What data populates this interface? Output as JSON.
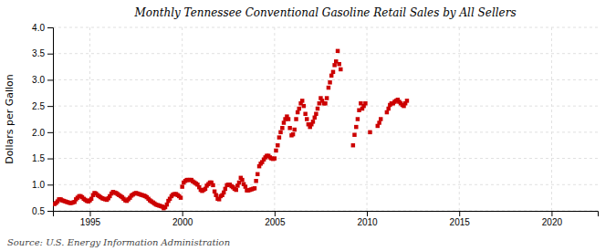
{
  "chart_data": {
    "type": "scatter",
    "title": "Monthly Tennessee Conventional Gasoline Retail Sales by All Sellers",
    "y_label": "Dollars per Gallon",
    "annotations": [
      "Source: U.S. Energy Information Administration"
    ],
    "color": "#cc0000",
    "marker": "square",
    "grid": true,
    "xlim": [
      1993.0,
      2022.5
    ],
    "ylim": [
      0.5,
      4.0
    ],
    "xticks": [
      1995,
      2000,
      2005,
      2010,
      2015,
      2020
    ],
    "yticks": [
      0.5,
      {
        "value": 1.0,
        "label": "1.0"
      },
      1.5,
      {
        "value": 2.0,
        "label": "2.0"
      },
      2.5,
      {
        "value": 3.0,
        "label": "3.0"
      },
      3.5,
      {
        "value": 4.0,
        "label": "4.0"
      }
    ],
    "x": [
      1993.08,
      1993.17,
      1993.25,
      1993.33,
      1993.42,
      1993.5,
      1993.58,
      1993.67,
      1993.75,
      1993.83,
      1993.92,
      1994.0,
      1994.08,
      1994.17,
      1994.25,
      1994.33,
      1994.42,
      1994.5,
      1994.58,
      1994.67,
      1994.75,
      1994.83,
      1994.92,
      1995.0,
      1995.08,
      1995.17,
      1995.25,
      1995.33,
      1995.42,
      1995.5,
      1995.58,
      1995.67,
      1995.75,
      1995.83,
      1995.92,
      1996.0,
      1996.08,
      1996.17,
      1996.25,
      1996.33,
      1996.42,
      1996.5,
      1996.58,
      1996.67,
      1996.75,
      1996.83,
      1996.92,
      1997.0,
      1997.08,
      1997.17,
      1997.25,
      1997.33,
      1997.42,
      1997.5,
      1997.58,
      1997.67,
      1997.75,
      1997.83,
      1997.92,
      1998.0,
      1998.08,
      1998.17,
      1998.25,
      1998.33,
      1998.42,
      1998.5,
      1998.58,
      1998.67,
      1998.75,
      1998.83,
      1998.92,
      1999.0,
      1999.08,
      1999.17,
      1999.25,
      1999.33,
      1999.42,
      1999.5,
      1999.58,
      1999.67,
      1999.75,
      1999.83,
      1999.92,
      2000.0,
      2000.08,
      2000.17,
      2000.25,
      2000.33,
      2000.42,
      2000.5,
      2000.58,
      2000.67,
      2000.75,
      2000.83,
      2000.92,
      2001.0,
      2001.08,
      2001.17,
      2001.25,
      2001.33,
      2001.42,
      2001.5,
      2001.58,
      2001.67,
      2001.75,
      2001.83,
      2001.92,
      2002.0,
      2002.08,
      2002.17,
      2002.25,
      2002.33,
      2002.42,
      2002.5,
      2002.58,
      2002.67,
      2002.75,
      2002.83,
      2002.92,
      2003.0,
      2003.08,
      2003.17,
      2003.25,
      2003.33,
      2003.42,
      2003.5,
      2003.58,
      2003.67,
      2003.75,
      2003.83,
      2003.92,
      2004.0,
      2004.08,
      2004.17,
      2004.25,
      2004.33,
      2004.42,
      2004.5,
      2004.58,
      2004.67,
      2004.75,
      2004.83,
      2004.92,
      2005.0,
      2005.08,
      2005.17,
      2005.25,
      2005.33,
      2005.42,
      2005.5,
      2005.58,
      2005.67,
      2005.75,
      2005.83,
      2005.92,
      2006.0,
      2006.08,
      2006.17,
      2006.25,
      2006.33,
      2006.42,
      2006.5,
      2006.58,
      2006.67,
      2006.75,
      2006.83,
      2006.92,
      2007.0,
      2007.08,
      2007.17,
      2007.25,
      2007.33,
      2007.42,
      2007.5,
      2007.58,
      2007.67,
      2007.75,
      2007.83,
      2007.92,
      2008.0,
      2008.08,
      2008.17,
      2008.25,
      2008.33,
      2008.42,
      2008.5,
      2008.58,
      2009.25,
      2009.33,
      2009.42,
      2009.5,
      2009.58,
      2009.67,
      2009.75,
      2009.83,
      2009.92,
      2010.17,
      2010.58,
      2010.67,
      2010.75,
      2011.08,
      2011.17,
      2011.25,
      2011.33,
      2011.42,
      2011.5,
      2011.58,
      2011.67,
      2011.75,
      2011.83,
      2011.92,
      2012.0,
      2012.08,
      2012.17
    ],
    "values": [
      0.63,
      0.65,
      0.68,
      0.72,
      0.72,
      0.7,
      0.69,
      0.68,
      0.67,
      0.66,
      0.65,
      0.65,
      0.66,
      0.67,
      0.72,
      0.75,
      0.78,
      0.78,
      0.76,
      0.73,
      0.71,
      0.69,
      0.68,
      0.7,
      0.73,
      0.8,
      0.84,
      0.83,
      0.8,
      0.78,
      0.76,
      0.74,
      0.73,
      0.72,
      0.71,
      0.74,
      0.78,
      0.83,
      0.86,
      0.85,
      0.84,
      0.82,
      0.8,
      0.78,
      0.76,
      0.73,
      0.7,
      0.69,
      0.72,
      0.75,
      0.79,
      0.81,
      0.83,
      0.84,
      0.83,
      0.82,
      0.81,
      0.8,
      0.79,
      0.78,
      0.76,
      0.73,
      0.7,
      0.68,
      0.66,
      0.64,
      0.62,
      0.61,
      0.6,
      0.59,
      0.58,
      0.55,
      0.57,
      0.62,
      0.69,
      0.73,
      0.78,
      0.81,
      0.82,
      0.82,
      0.8,
      0.78,
      0.75,
      0.96,
      1.04,
      1.07,
      1.09,
      1.09,
      1.09,
      1.09,
      1.06,
      1.04,
      1.02,
      1.0,
      0.95,
      0.9,
      0.88,
      0.9,
      0.92,
      0.98,
      1.01,
      1.04,
      1.04,
      0.99,
      0.87,
      0.8,
      0.73,
      0.72,
      0.78,
      0.8,
      0.85,
      0.92,
      0.99,
      1.0,
      1.0,
      0.97,
      0.95,
      0.92,
      0.9,
      0.98,
      1.04,
      1.13,
      1.09,
      1.01,
      0.96,
      0.89,
      0.89,
      0.9,
      0.91,
      0.92,
      0.93,
      1.07,
      1.2,
      1.35,
      1.4,
      1.43,
      1.48,
      1.52,
      1.55,
      1.55,
      1.52,
      1.5,
      1.49,
      1.5,
      1.65,
      1.75,
      1.9,
      2.0,
      2.08,
      2.18,
      2.25,
      2.3,
      2.25,
      2.08,
      1.94,
      1.96,
      2.05,
      2.25,
      2.38,
      2.45,
      2.55,
      2.6,
      2.5,
      2.35,
      2.25,
      2.15,
      2.1,
      2.15,
      2.2,
      2.28,
      2.35,
      2.45,
      2.55,
      2.65,
      2.6,
      2.55,
      2.55,
      2.65,
      2.85,
      2.95,
      3.08,
      3.15,
      3.28,
      3.35,
      3.55,
      3.3,
      3.2,
      1.75,
      1.95,
      2.1,
      2.25,
      2.42,
      2.55,
      2.45,
      2.5,
      2.55,
      2.0,
      2.12,
      2.18,
      2.25,
      2.38,
      2.45,
      2.52,
      2.55,
      2.55,
      2.58,
      2.6,
      2.62,
      2.58,
      2.55,
      2.52,
      2.5,
      2.55,
      2.6
    ]
  }
}
